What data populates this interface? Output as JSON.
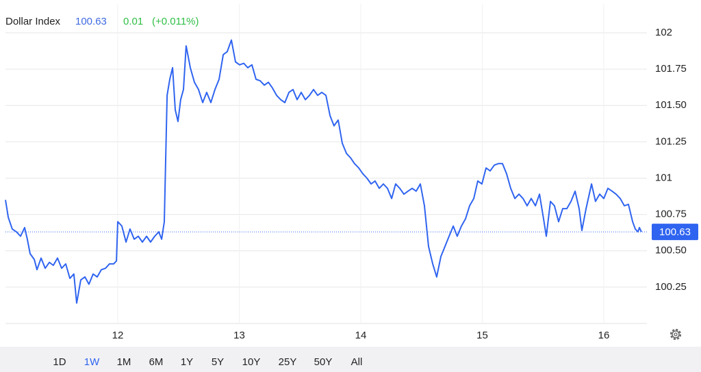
{
  "chart_data": {
    "type": "line",
    "title": "Dollar Index",
    "price": 100.63,
    "change": 0.01,
    "change_label": "(+0.011%)",
    "color": "#2f64f0",
    "price_color": "#3e6ae1",
    "change_color": "#2fbf45",
    "grid": true,
    "xlim": [
      11.076,
      16.355
    ],
    "xticks": [
      12,
      13,
      14,
      15,
      16
    ],
    "ylim": [
      100.0,
      102.2
    ],
    "yticks": [
      100.25,
      {
        "value": 100.5,
        "label": "100.50"
      },
      100.75,
      101,
      101.25,
      {
        "value": 101.5,
        "label": "101.50"
      },
      101.75,
      102
    ],
    "x": [
      11.076,
      11.099,
      11.132,
      11.166,
      11.2,
      11.234,
      11.256,
      11.279,
      11.313,
      11.335,
      11.369,
      11.403,
      11.437,
      11.47,
      11.504,
      11.538,
      11.572,
      11.606,
      11.639,
      11.662,
      11.696,
      11.73,
      11.763,
      11.797,
      11.831,
      11.865,
      11.899,
      11.932,
      11.966,
      11.989,
      12.0,
      12.034,
      12.068,
      12.101,
      12.135,
      12.169,
      12.203,
      12.237,
      12.27,
      12.304,
      12.338,
      12.361,
      12.383,
      12.406,
      12.428,
      12.451,
      12.473,
      12.496,
      12.518,
      12.541,
      12.563,
      12.597,
      12.631,
      12.665,
      12.699,
      12.732,
      12.766,
      12.8,
      12.834,
      12.868,
      12.901,
      12.935,
      12.969,
      13.003,
      13.037,
      13.07,
      13.104,
      13.138,
      13.172,
      13.206,
      13.24,
      13.273,
      13.307,
      13.341,
      13.375,
      13.409,
      13.442,
      13.476,
      13.51,
      13.544,
      13.578,
      13.611,
      13.645,
      13.679,
      13.713,
      13.747,
      13.78,
      13.814,
      13.848,
      13.882,
      13.916,
      13.949,
      13.983,
      14.017,
      14.051,
      14.085,
      14.118,
      14.152,
      14.186,
      14.22,
      14.254,
      14.287,
      14.321,
      14.355,
      14.389,
      14.423,
      14.456,
      14.49,
      14.524,
      14.558,
      14.592,
      14.625,
      14.659,
      14.693,
      14.727,
      14.761,
      14.794,
      14.828,
      14.862,
      14.896,
      14.93,
      14.963,
      14.997,
      15.031,
      15.065,
      15.099,
      15.132,
      15.166,
      15.2,
      15.234,
      15.268,
      15.302,
      15.335,
      15.369,
      15.403,
      15.437,
      15.471,
      15.504,
      15.527,
      15.561,
      15.594,
      15.628,
      15.662,
      15.696,
      15.73,
      15.764,
      15.797,
      15.82,
      15.854,
      15.899,
      15.932,
      15.966,
      16.0,
      16.034,
      16.068,
      16.101,
      16.135,
      16.169,
      16.203,
      16.237,
      16.259,
      16.282,
      16.293,
      16.31
    ],
    "values": [
      100.85,
      100.73,
      100.65,
      100.63,
      100.6,
      100.66,
      100.58,
      100.48,
      100.44,
      100.37,
      100.45,
      100.38,
      100.42,
      100.4,
      100.45,
      100.38,
      100.41,
      100.31,
      100.34,
      100.14,
      100.3,
      100.32,
      100.27,
      100.34,
      100.32,
      100.37,
      100.38,
      100.41,
      100.41,
      100.43,
      100.7,
      100.67,
      100.56,
      100.65,
      100.58,
      100.6,
      100.56,
      100.6,
      100.56,
      100.6,
      100.63,
      100.58,
      100.7,
      101.57,
      101.68,
      101.76,
      101.47,
      101.39,
      101.54,
      101.61,
      101.91,
      101.76,
      101.66,
      101.61,
      101.52,
      101.59,
      101.52,
      101.61,
      101.68,
      101.85,
      101.87,
      101.95,
      101.8,
      101.78,
      101.79,
      101.76,
      101.78,
      101.68,
      101.67,
      101.64,
      101.66,
      101.62,
      101.57,
      101.54,
      101.52,
      101.59,
      101.61,
      101.54,
      101.59,
      101.54,
      101.57,
      101.61,
      101.57,
      101.59,
      101.57,
      101.43,
      101.36,
      101.4,
      101.24,
      101.17,
      101.14,
      101.1,
      101.07,
      101.03,
      101.0,
      100.96,
      100.98,
      100.93,
      100.96,
      100.93,
      100.86,
      100.96,
      100.93,
      100.89,
      100.91,
      100.93,
      100.91,
      100.96,
      100.81,
      100.53,
      100.41,
      100.32,
      100.46,
      100.53,
      100.6,
      100.67,
      100.6,
      100.67,
      100.72,
      100.81,
      100.86,
      100.98,
      100.96,
      101.07,
      101.05,
      101.09,
      101.1,
      101.1,
      101.03,
      100.93,
      100.86,
      100.89,
      100.86,
      100.81,
      100.86,
      100.81,
      100.89,
      100.72,
      100.6,
      100.84,
      100.81,
      100.7,
      100.79,
      100.79,
      100.84,
      100.91,
      100.79,
      100.64,
      100.79,
      100.96,
      100.84,
      100.89,
      100.86,
      100.93,
      100.91,
      100.89,
      100.86,
      100.81,
      100.82,
      100.7,
      100.65,
      100.63,
      100.66,
      100.63
    ],
    "ranges": [
      "1D",
      "1W",
      "1M",
      "6M",
      "1Y",
      "5Y",
      "10Y",
      "25Y",
      "50Y",
      "All"
    ],
    "selected_range": "1W"
  }
}
